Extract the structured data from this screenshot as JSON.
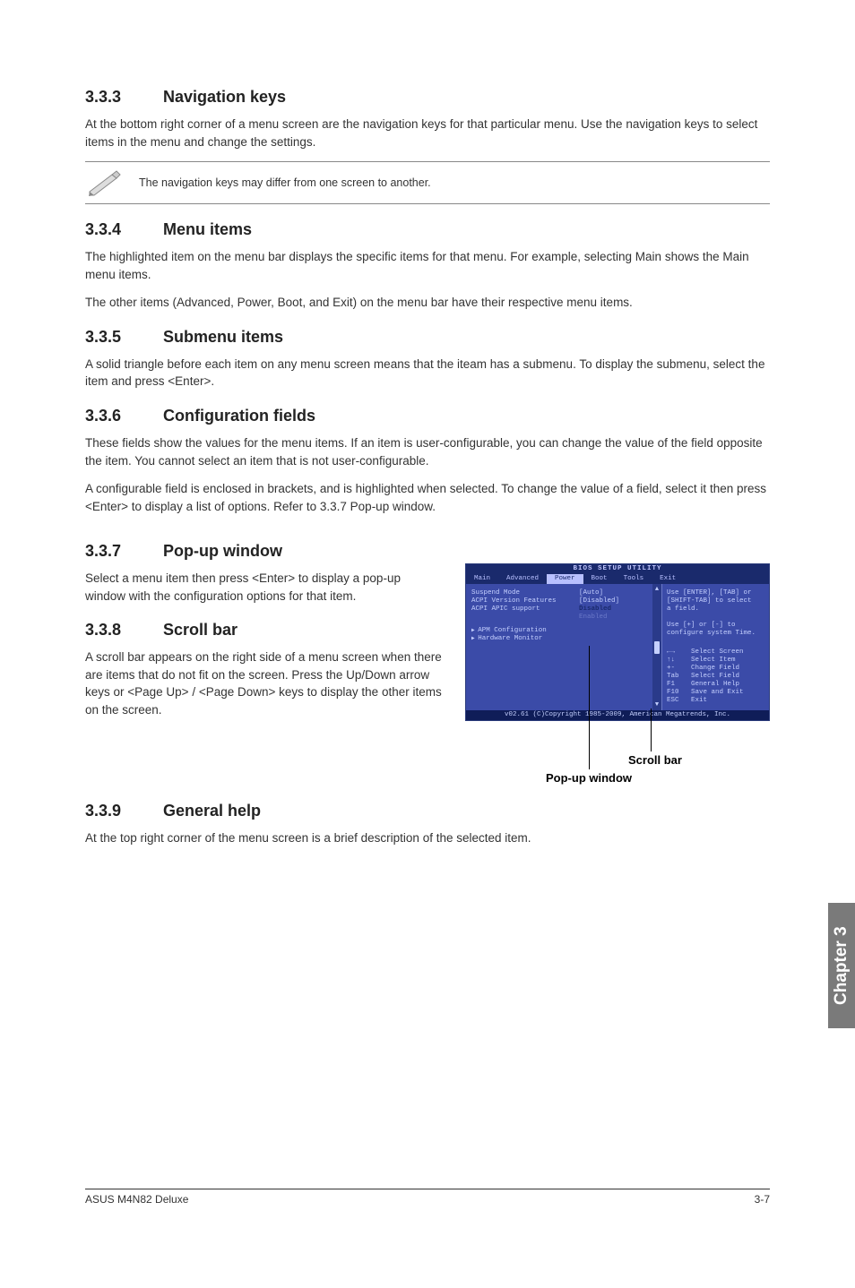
{
  "sections": {
    "s333": {
      "num": "3.3.3",
      "title": "Navigation keys",
      "p1": "At the bottom right corner of a menu screen are the navigation keys for that particular menu. Use the navigation keys to select items in the menu and change the settings."
    },
    "note": "The navigation keys may differ from one screen to another.",
    "s334": {
      "num": "3.3.4",
      "title": "Menu items",
      "p1": "The highlighted item on the menu bar displays the specific items for that menu. For example, selecting Main shows the Main menu items.",
      "p2": "The other items (Advanced, Power, Boot, and Exit) on the menu bar have their respective menu items."
    },
    "s335": {
      "num": "3.3.5",
      "title": "Submenu items",
      "p1": "A solid triangle before each item on any menu screen means that the iteam has a submenu. To display the submenu, select the item and press <Enter>."
    },
    "s336": {
      "num": "3.3.6",
      "title": "Configuration fields",
      "p1": "These fields show the values for the menu items. If an item is user-configurable, you can change the value of the field opposite the item. You cannot select an item that is not user-configurable.",
      "p2": "A configurable field is enclosed in brackets, and is highlighted when selected. To change the value of a field, select it then press <Enter> to display a list of options. Refer to 3.3.7 Pop-up window."
    },
    "s337": {
      "num": "3.3.7",
      "title": "Pop-up window",
      "p1": "Select a menu item then press <Enter> to display a pop-up window with the configuration options for that item."
    },
    "s338": {
      "num": "3.3.8",
      "title": "Scroll bar",
      "p1": "A scroll bar appears on the right side of a menu screen when there are items that do not fit on the screen. Press the Up/Down arrow keys or <Page Up> / <Page Down> keys to display the other items on the screen."
    },
    "s339": {
      "num": "3.3.9",
      "title": "General help",
      "p1": "At the top right corner of the menu screen is a brief description of the selected item."
    }
  },
  "bios": {
    "title": "BIOS SETUP UTILITY",
    "tabs": [
      "Main",
      "Advanced",
      "Power",
      "Boot",
      "Tools",
      "Exit"
    ],
    "active_tab": "Power",
    "rows": [
      {
        "label": "Suspend Mode",
        "value": "[Auto]",
        "vclass": "val"
      },
      {
        "label": "ACPI Version Features",
        "value": "[Disabled]",
        "vclass": "val"
      },
      {
        "label": "ACPI APIC support",
        "value": "Disabled",
        "vclass": "valopt"
      },
      {
        "label": "",
        "value": "Enabled",
        "vclass": "val",
        "dim": true
      }
    ],
    "submenus": [
      "APM Configuration",
      "Hardware Monitor"
    ],
    "help_top": "Use [ENTER], [TAB] or\n[SHIFT-TAB] to select\na field.\n\nUse [+] or [-] to\nconfigure system Time.",
    "keys": "←→    Select Screen\n↑↓    Select Item\n+-    Change Field\nTab   Select Field\nF1    General Help\nF10   Save and Exit\nESC   Exit",
    "footer": "v02.61 (C)Copyright 1985-2009, American Megatrends, Inc.",
    "colors": {
      "bg": "#3b4ba8",
      "dark": "#1a2a6c",
      "light": "#c5d0ff"
    }
  },
  "callouts": {
    "scrollbar": "Scroll bar",
    "popup": "Pop-up window"
  },
  "sidetab": "Chapter 3",
  "footer": {
    "left": "ASUS M4N82 Deluxe",
    "right": "3-7"
  }
}
